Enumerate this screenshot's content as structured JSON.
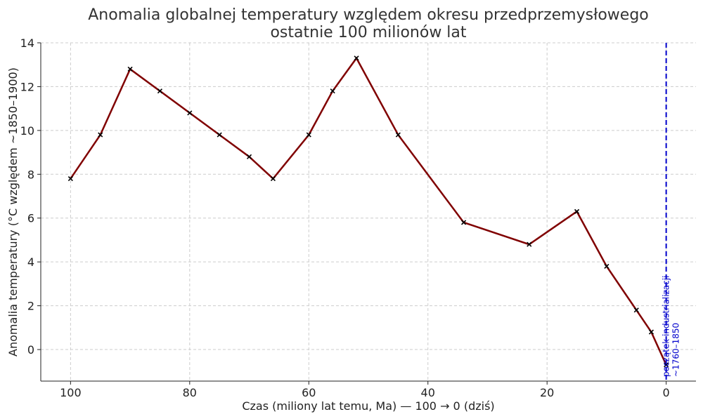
{
  "chart_data": {
    "type": "line",
    "title": [
      "Anomalia globalnej temperatury względem okresu przedprzemysłowego",
      "ostatnie 100 milionów lat"
    ],
    "x_label": "Czas (miliony lat temu, Ma) — 100 → 0 (dziś)",
    "y_label": "Anomalia temperatury (°C względem ~1850–1900)",
    "x": [
      100,
      95,
      90,
      85,
      80,
      75,
      70,
      66,
      60,
      56,
      52,
      45,
      34,
      23,
      15,
      10,
      5,
      2.5,
      0
    ],
    "series": [
      {
        "color": "#800000",
        "marker_color": "#000000",
        "values": [
          7.8,
          9.8,
          12.8,
          11.8,
          10.8,
          9.8,
          8.8,
          7.8,
          9.8,
          11.8,
          13.3,
          9.8,
          5.8,
          4.8,
          6.3,
          3.8,
          1.8,
          0.8,
          -0.7
        ]
      }
    ],
    "xlim": [
      105,
      -5
    ],
    "xticks": [
      100,
      80,
      60,
      40,
      20,
      0
    ],
    "ylim": [
      -1.44,
      14
    ],
    "yticks": [
      0,
      2,
      4,
      6,
      8,
      10,
      12,
      14
    ],
    "grid": true,
    "annotation": {
      "x": 0,
      "color": "#0000cc",
      "text": [
        "początek industrializacji",
        "~1760–1850"
      ]
    }
  }
}
